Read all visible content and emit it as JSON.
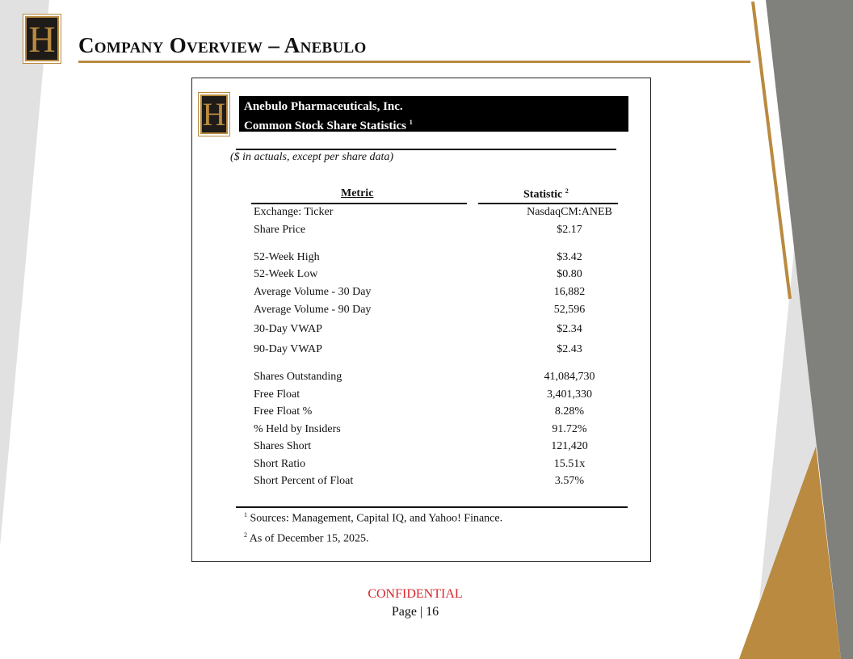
{
  "colors": {
    "gold": "#b98a40",
    "dark_gray": "#80817c",
    "light_gray": "#e1e1e1",
    "confidential_red": "#d8262c"
  },
  "logo": {
    "letter": "H"
  },
  "header": {
    "title": "Company Overview – Anebulo"
  },
  "panel": {
    "banner_line1": "Anebulo Pharmaceuticals, Inc.",
    "banner_line2": "Common Stock Share Statistics",
    "banner_sup": "1",
    "note": "($ in actuals, except per share data)",
    "col_metric": "Metric",
    "col_statistic": "Statistic",
    "col_statistic_sup": "2",
    "rows": [
      {
        "metric": "Exchange: Ticker",
        "value": "NasdaqCM:ANEB"
      },
      {
        "metric": "Share Price",
        "value": "$2.17"
      },
      {
        "metric": "52-Week High",
        "value": "$3.42"
      },
      {
        "metric": "52-Week Low",
        "value": "$0.80"
      },
      {
        "metric": "Average Volume - 30 Day",
        "value": "16,882"
      },
      {
        "metric": "Average Volume - 90 Day",
        "value": "52,596"
      },
      {
        "metric": "30-Day VWAP",
        "value": "$2.34"
      },
      {
        "metric": "90-Day VWAP",
        "value": "$2.43"
      },
      {
        "metric": "Shares Outstanding",
        "value": "41,084,730"
      },
      {
        "metric": "Free Float",
        "value": "3,401,330"
      },
      {
        "metric": "Free Float %",
        "value": "8.28%"
      },
      {
        "metric": "% Held by Insiders",
        "value": "91.72%"
      },
      {
        "metric": "Shares Short",
        "value": "121,420"
      },
      {
        "metric": "Short Ratio",
        "value": "15.51x"
      },
      {
        "metric": "Short Percent of Float",
        "value": "3.57%"
      }
    ],
    "footnotes": [
      {
        "sup": "1",
        "text": "Sources: Management, Capital IQ, and Yahoo! Finance."
      },
      {
        "sup": "2",
        "text": "As of December 15, 2025."
      }
    ]
  },
  "footer": {
    "confidential": "CONFIDENTIAL",
    "page": "Page | 16"
  }
}
